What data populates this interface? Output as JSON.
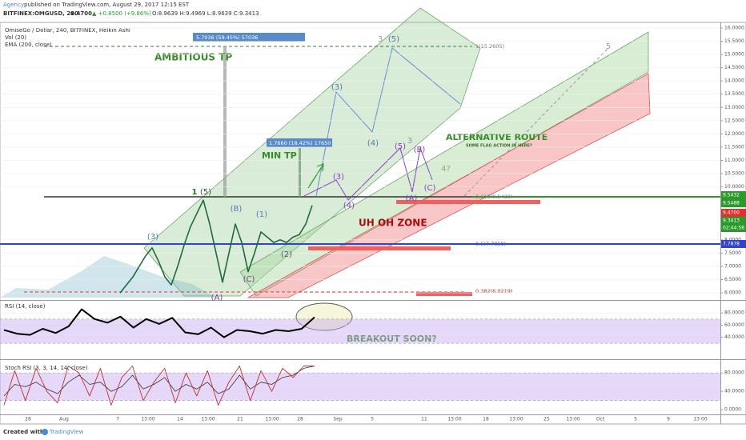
{
  "header": {
    "author": "Agency",
    "published": "published on TradingView.com, August 29, 2017 12:15 EST",
    "symbol": "BITFINEX:OMGUSD, 240",
    "last": "9.4700",
    "change": "▲ +0.8500 (+9.86%)",
    "ohlc": "O:8.9639 H:9.4969 L:8.9639 C:9.3413"
  },
  "legend": [
    "OmiseGo / Dollar, 240, BITFINEX, Heikin Ashi",
    "Vol (20)",
    "EMA (200, close)"
  ],
  "price_pane": {
    "ylim": [
      5.73,
      16.21
    ],
    "yticks": [
      {
        "value": 6,
        "label": "6.0000"
      },
      {
        "value": 6.5,
        "label": "6.5000"
      },
      {
        "value": 7,
        "label": "7.0000"
      },
      {
        "value": 7.5,
        "label": "7.5000"
      },
      {
        "value": 8,
        "label": "8.0000"
      },
      {
        "value": 10,
        "label": "10.0000"
      },
      {
        "value": 10.5,
        "label": "10.5000"
      },
      {
        "value": 11,
        "label": "11.0000"
      },
      {
        "value": 11.5,
        "label": "11.5000"
      },
      {
        "value": 12,
        "label": "12.0000"
      },
      {
        "value": 12.5,
        "label": "12.5000"
      },
      {
        "value": 13,
        "label": "13.0000"
      },
      {
        "value": 13.5,
        "label": "13.5000"
      },
      {
        "value": 14,
        "label": "14.0000"
      },
      {
        "value": 14.5,
        "label": "14.5000"
      },
      {
        "value": 15,
        "label": "15.0000"
      },
      {
        "value": 15.5,
        "label": "15.5000"
      },
      {
        "value": 16,
        "label": "16.0000"
      }
    ],
    "close": [
      6.0,
      6.3,
      6.6,
      7.0,
      7.4,
      7.7,
      7.2,
      6.6,
      6.3,
      7.0,
      7.8,
      8.5,
      9.0,
      9.5,
      8.6,
      7.5,
      6.4,
      7.5,
      8.6,
      7.9,
      6.8,
      7.5,
      8.3,
      8.1,
      7.9,
      8.0,
      7.9,
      8.1,
      8.2,
      8.6,
      9.3
    ],
    "badges": [
      "9.5432",
      "9.5488",
      "9.4700",
      "9.3413",
      "02:44:58",
      "7.7878"
    ]
  },
  "rsi_pane": {
    "title": "RSI (14, close)",
    "ylim": [
      4,
      100
    ],
    "yticks": [
      {
        "value": 80,
        "label": "80.0000"
      },
      {
        "value": 60,
        "label": "60.0000"
      },
      {
        "value": 40,
        "label": "40.0000"
      }
    ],
    "bands": [
      70,
      30
    ],
    "values": [
      52,
      46,
      44,
      54,
      47,
      58,
      86,
      70,
      64,
      74,
      56,
      70,
      62,
      72,
      48,
      45,
      56,
      40,
      52,
      50,
      46,
      52,
      50,
      54,
      73
    ]
  },
  "stoch_pane": {
    "title": "Stoch RSI (3, 3, 14, 14, close)",
    "ylim": [
      -10,
      108
    ],
    "yticks": [
      {
        "value": 80,
        "label": "80.0000"
      },
      {
        "value": 40,
        "label": "40.0000"
      },
      {
        "value": 0,
        "label": "0.0000"
      }
    ],
    "bands": [
      80,
      20
    ],
    "k": [
      10,
      85,
      20,
      90,
      40,
      15,
      95,
      80,
      30,
      90,
      10,
      70,
      95,
      20,
      60,
      90,
      15,
      80,
      30,
      85,
      10,
      60,
      95,
      20,
      85,
      40,
      90,
      70,
      95,
      95
    ],
    "d": [
      30,
      55,
      50,
      60,
      45,
      35,
      60,
      75,
      55,
      60,
      40,
      50,
      75,
      45,
      55,
      70,
      40,
      55,
      45,
      60,
      35,
      45,
      75,
      45,
      60,
      55,
      70,
      75,
      90,
      95
    ]
  },
  "time_axis": [
    "28",
    "Aug",
    "7",
    "13:00",
    "14",
    "13:00",
    "21",
    "13:00",
    "28",
    "Sep",
    "5",
    "11",
    "13:00",
    "18",
    "13:00",
    "25",
    "13:00",
    "Oct",
    "5",
    "9",
    "13:00"
  ],
  "annotations": {
    "ambitious": "AMBITIOUS TP",
    "min": "MIN TP",
    "alt": "ALTERNATIVE ROUTE",
    "flag": "SOME FLAG ACTION IN HERE?",
    "uhoh": "UH OH ZONE",
    "breakout": "BREAKOUT SOON?",
    "tp_big": "5.7036 (59.45%) 57036",
    "tp_small": "1.7660 (18.42%) 17650"
  },
  "fib_labels": [
    "1(15.2605)",
    "0.618(9.5438)",
    "0.5(7.7859)",
    "0.382(6.0219)"
  ],
  "waves": [
    "(3)",
    "1",
    "(5)",
    "(B)",
    "(1)",
    "(2)",
    "(C)",
    "(A)",
    "(3)",
    "(4)",
    "3",
    "(5)",
    "(3)",
    "(4)",
    "(5)",
    "3",
    "(B)",
    "(C)",
    "(A)",
    "4?",
    "5"
  ],
  "footer": {
    "created": "Created with",
    "brand": "TradingView"
  }
}
